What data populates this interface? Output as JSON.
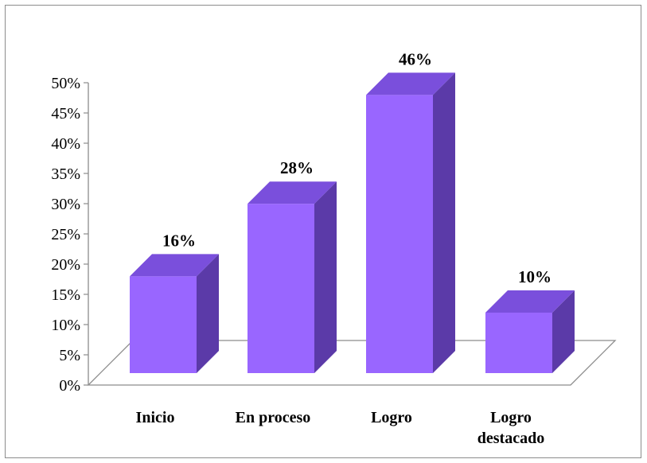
{
  "chart_data": {
    "type": "bar",
    "style": "3d",
    "categories": [
      "Inicio",
      "En proceso",
      "Logro",
      "Logro destacado"
    ],
    "category_lines": [
      [
        "Inicio"
      ],
      [
        "En proceso"
      ],
      [
        "Logro"
      ],
      [
        "Logro",
        "destacado"
      ]
    ],
    "values": [
      16,
      28,
      46,
      10
    ],
    "data_labels": [
      "16%",
      "28%",
      "46%",
      "10%"
    ],
    "y_ticks": [
      "0%",
      "5%",
      "10%",
      "15%",
      "20%",
      "25%",
      "30%",
      "35%",
      "40%",
      "45%",
      "50%"
    ],
    "ylim": [
      0,
      50
    ],
    "grid": false,
    "legend": "none",
    "colors": {
      "bar_front": "#9966ff",
      "bar_top": "#7a4fdc",
      "bar_side": "#5b3aa8",
      "axis": "#8c8c8c"
    }
  }
}
